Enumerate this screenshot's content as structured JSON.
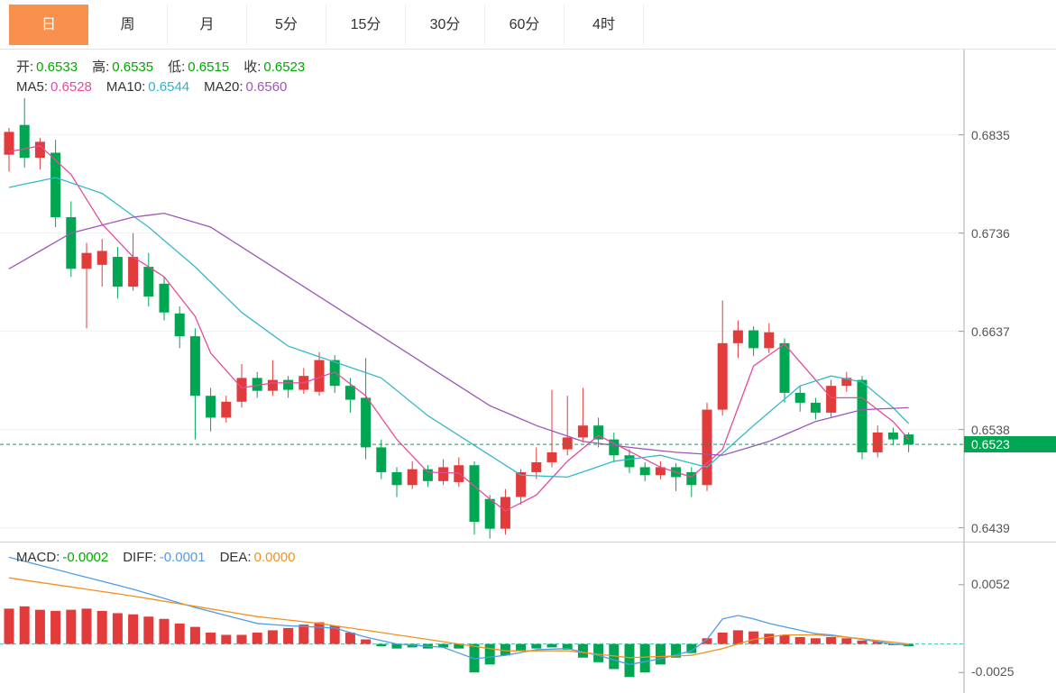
{
  "tabs": {
    "active_index": 0,
    "items": [
      {
        "label": "日"
      },
      {
        "label": "周"
      },
      {
        "label": "月"
      },
      {
        "label": "5分"
      },
      {
        "label": "15分"
      },
      {
        "label": "30分"
      },
      {
        "label": "60分"
      },
      {
        "label": "4时"
      }
    ]
  },
  "ohlc_legend": {
    "open_label": "开:",
    "open": "0.6533",
    "high_label": "高:",
    "high": "0.6535",
    "low_label": "低:",
    "low": "0.6515",
    "close_label": "收:",
    "close": "0.6523"
  },
  "ma_legend": {
    "ma5_label": "MA5:",
    "ma5": "0.6528",
    "ma10_label": "MA10:",
    "ma10": "0.6544",
    "ma20_label": "MA20:",
    "ma20": "0.6560"
  },
  "macd_legend": {
    "macd_label": "MACD:",
    "macd": "-0.0002",
    "diff_label": "DIFF:",
    "diff": "-0.0001",
    "dea_label": "DEA:",
    "dea": "0.0000"
  },
  "price_marker": {
    "value": "0.6523",
    "price": 0.6523
  },
  "colors": {
    "accent": "#f7914d",
    "up": "#e23b3b",
    "down": "#00a651",
    "ma5": "#e84a9a",
    "ma10": "#36b8cd",
    "ma20": "#9e56b8",
    "diff": "#4f9ce8",
    "dea": "#f0921f",
    "zero_line": "#35c3b8",
    "legend_green": "#00a800",
    "axis_text": "#555"
  },
  "chart_data": {
    "type": "candlestick",
    "title": "Daily candlestick chart with MA5/MA10/MA20 and MACD sub-panel",
    "legend_position": "top-left",
    "grid": true,
    "y_axis": {
      "labels": [
        0.6835,
        0.6736,
        0.6637,
        0.6538,
        0.6439
      ],
      "max": 0.6921,
      "min": 0.6425
    },
    "current_price": 0.6523,
    "candles": [
      [
        0.6815,
        0.6842,
        0.6798,
        0.6838
      ],
      [
        0.6845,
        0.6872,
        0.6802,
        0.6812
      ],
      [
        0.6812,
        0.6832,
        0.68,
        0.6828
      ],
      [
        0.6817,
        0.683,
        0.6742,
        0.6752
      ],
      [
        0.6752,
        0.6768,
        0.6692,
        0.67
      ],
      [
        0.67,
        0.6726,
        0.664,
        0.6716
      ],
      [
        0.6704,
        0.673,
        0.6682,
        0.6718
      ],
      [
        0.6712,
        0.6722,
        0.667,
        0.6682
      ],
      [
        0.6682,
        0.6736,
        0.6678,
        0.6712
      ],
      [
        0.6702,
        0.6716,
        0.6662,
        0.6672
      ],
      [
        0.6685,
        0.6692,
        0.6648,
        0.6656
      ],
      [
        0.6655,
        0.6662,
        0.662,
        0.6632
      ],
      [
        0.6632,
        0.664,
        0.6528,
        0.6572
      ],
      [
        0.6572,
        0.658,
        0.6536,
        0.655
      ],
      [
        0.655,
        0.6572,
        0.6545,
        0.6566
      ],
      [
        0.6566,
        0.6604,
        0.656,
        0.659
      ],
      [
        0.659,
        0.6596,
        0.657,
        0.6577
      ],
      [
        0.6577,
        0.6608,
        0.6572,
        0.6588
      ],
      [
        0.6588,
        0.6592,
        0.657,
        0.6578
      ],
      [
        0.6578,
        0.66,
        0.6574,
        0.6592
      ],
      [
        0.6576,
        0.6616,
        0.6572,
        0.6608
      ],
      [
        0.6608,
        0.6613,
        0.6575,
        0.6582
      ],
      [
        0.6582,
        0.659,
        0.6555,
        0.6568
      ],
      [
        0.657,
        0.661,
        0.6508,
        0.652
      ],
      [
        0.652,
        0.6528,
        0.6488,
        0.6495
      ],
      [
        0.6495,
        0.65,
        0.647,
        0.6482
      ],
      [
        0.6482,
        0.6506,
        0.6478,
        0.6498
      ],
      [
        0.6498,
        0.6502,
        0.648,
        0.6486
      ],
      [
        0.6486,
        0.6508,
        0.6482,
        0.65
      ],
      [
        0.6485,
        0.651,
        0.648,
        0.6502
      ],
      [
        0.6502,
        0.6506,
        0.6432,
        0.6445
      ],
      [
        0.6468,
        0.6472,
        0.6428,
        0.6438
      ],
      [
        0.6438,
        0.6478,
        0.6432,
        0.647
      ],
      [
        0.647,
        0.6498,
        0.6462,
        0.6495
      ],
      [
        0.6495,
        0.652,
        0.6488,
        0.6505
      ],
      [
        0.6505,
        0.6578,
        0.65,
        0.6515
      ],
      [
        0.6518,
        0.6572,
        0.6512,
        0.653
      ],
      [
        0.653,
        0.658,
        0.6525,
        0.6542
      ],
      [
        0.6542,
        0.655,
        0.652,
        0.6528
      ],
      [
        0.6528,
        0.6535,
        0.6505,
        0.6512
      ],
      [
        0.6512,
        0.6518,
        0.6494,
        0.65
      ],
      [
        0.65,
        0.6505,
        0.6486,
        0.6492
      ],
      [
        0.6492,
        0.6506,
        0.6488,
        0.65
      ],
      [
        0.65,
        0.6504,
        0.6476,
        0.649
      ],
      [
        0.6495,
        0.65,
        0.647,
        0.6482
      ],
      [
        0.6482,
        0.6565,
        0.6476,
        0.6558
      ],
      [
        0.6558,
        0.6668,
        0.6552,
        0.6625
      ],
      [
        0.6625,
        0.6648,
        0.661,
        0.6638
      ],
      [
        0.6638,
        0.6642,
        0.6612,
        0.662
      ],
      [
        0.662,
        0.6645,
        0.6615,
        0.6636
      ],
      [
        0.6625,
        0.663,
        0.6565,
        0.6575
      ],
      [
        0.6575,
        0.6582,
        0.6556,
        0.6565
      ],
      [
        0.6565,
        0.657,
        0.6548,
        0.6555
      ],
      [
        0.6555,
        0.6588,
        0.655,
        0.6582
      ],
      [
        0.6582,
        0.6596,
        0.6576,
        0.659
      ],
      [
        0.6588,
        0.6592,
        0.6508,
        0.6515
      ],
      [
        0.6515,
        0.6542,
        0.651,
        0.6535
      ],
      [
        0.6535,
        0.654,
        0.6522,
        0.6528
      ],
      [
        0.6533,
        0.6535,
        0.6515,
        0.6523
      ]
    ],
    "ma5_points": [
      [
        0,
        0.6818
      ],
      [
        2,
        0.6824
      ],
      [
        4,
        0.6795
      ],
      [
        6,
        0.6745
      ],
      [
        8,
        0.6712
      ],
      [
        10,
        0.6692
      ],
      [
        12,
        0.6652
      ],
      [
        13,
        0.6615
      ],
      [
        15,
        0.658
      ],
      [
        17,
        0.6585
      ],
      [
        19,
        0.6585
      ],
      [
        21,
        0.6596
      ],
      [
        23,
        0.6572
      ],
      [
        25,
        0.6528
      ],
      [
        27,
        0.6495
      ],
      [
        29,
        0.6494
      ],
      [
        31,
        0.6468
      ],
      [
        32,
        0.6456
      ],
      [
        34,
        0.6472
      ],
      [
        36,
        0.6506
      ],
      [
        38,
        0.6532
      ],
      [
        40,
        0.6516
      ],
      [
        42,
        0.65
      ],
      [
        44,
        0.649
      ],
      [
        46,
        0.6518
      ],
      [
        48,
        0.6602
      ],
      [
        50,
        0.6624
      ],
      [
        51,
        0.6606
      ],
      [
        53,
        0.657
      ],
      [
        55,
        0.657
      ],
      [
        57,
        0.6546
      ],
      [
        58,
        0.6528
      ]
    ],
    "ma10_points": [
      [
        0,
        0.6782
      ],
      [
        3,
        0.6792
      ],
      [
        6,
        0.6776
      ],
      [
        9,
        0.6742
      ],
      [
        12,
        0.6702
      ],
      [
        15,
        0.6656
      ],
      [
        18,
        0.6622
      ],
      [
        21,
        0.6606
      ],
      [
        24,
        0.659
      ],
      [
        27,
        0.6552
      ],
      [
        30,
        0.6522
      ],
      [
        33,
        0.6492
      ],
      [
        36,
        0.649
      ],
      [
        39,
        0.6506
      ],
      [
        42,
        0.6512
      ],
      [
        45,
        0.65
      ],
      [
        48,
        0.6542
      ],
      [
        51,
        0.6582
      ],
      [
        53,
        0.6592
      ],
      [
        55,
        0.6586
      ],
      [
        57,
        0.656
      ],
      [
        58,
        0.6544
      ]
    ],
    "ma20_points": [
      [
        0,
        0.67
      ],
      [
        4,
        0.6736
      ],
      [
        8,
        0.6752
      ],
      [
        10,
        0.6756
      ],
      [
        13,
        0.6742
      ],
      [
        16,
        0.6712
      ],
      [
        19,
        0.6682
      ],
      [
        22,
        0.6652
      ],
      [
        25,
        0.6622
      ],
      [
        28,
        0.6592
      ],
      [
        31,
        0.6562
      ],
      [
        34,
        0.6542
      ],
      [
        37,
        0.6526
      ],
      [
        40,
        0.652
      ],
      [
        43,
        0.6515
      ],
      [
        46,
        0.6512
      ],
      [
        49,
        0.6526
      ],
      [
        52,
        0.6546
      ],
      [
        55,
        0.6558
      ],
      [
        58,
        0.656
      ]
    ],
    "macd": {
      "y_axis": {
        "labels": [
          0.0052,
          -0.0025
        ],
        "max": 0.0089,
        "min": -0.0043
      },
      "histogram": [
        0.0031,
        0.0033,
        0.003,
        0.0029,
        0.003,
        0.0031,
        0.0029,
        0.0027,
        0.0026,
        0.0024,
        0.0022,
        0.0018,
        0.0015,
        0.001,
        0.0008,
        0.0008,
        0.001,
        0.0012,
        0.0014,
        0.0017,
        0.0019,
        0.0016,
        0.001,
        0.0004,
        -0.0002,
        -0.0004,
        -0.0003,
        -0.0004,
        -0.0003,
        -0.0004,
        -0.0025,
        -0.0018,
        -0.001,
        -0.0006,
        -0.0004,
        -0.0003,
        -0.0005,
        -0.0012,
        -0.0016,
        -0.0022,
        -0.0029,
        -0.0025,
        -0.0018,
        -0.0012,
        -0.0008,
        0.0005,
        0.001,
        0.0012,
        0.0011,
        0.0009,
        0.0008,
        0.0006,
        0.0005,
        0.0006,
        0.0005,
        0.0003,
        0.0002,
        -0.0001,
        -0.0002
      ],
      "diff_points": [
        [
          0,
          0.0076
        ],
        [
          4,
          0.0062
        ],
        [
          8,
          0.0048
        ],
        [
          12,
          0.0032
        ],
        [
          16,
          0.0018
        ],
        [
          18,
          0.0016
        ],
        [
          21,
          0.0014
        ],
        [
          23,
          0.0006
        ],
        [
          25,
          0.0
        ],
        [
          28,
          -0.0003
        ],
        [
          30,
          -0.0013
        ],
        [
          32,
          -0.001
        ],
        [
          34,
          -0.0005
        ],
        [
          36,
          -0.0004
        ],
        [
          38,
          -0.001
        ],
        [
          40,
          -0.0018
        ],
        [
          42,
          -0.0013
        ],
        [
          44,
          -0.0006
        ],
        [
          45,
          0.0004
        ],
        [
          46,
          0.0022
        ],
        [
          47,
          0.0025
        ],
        [
          48,
          0.0022
        ],
        [
          49,
          0.0018
        ],
        [
          50,
          0.0015
        ],
        [
          51,
          0.0012
        ],
        [
          52,
          0.0009
        ],
        [
          53,
          0.0008
        ],
        [
          54,
          0.0006
        ],
        [
          55,
          0.0004
        ],
        [
          56,
          0.0002
        ],
        [
          57,
          0.0
        ],
        [
          58,
          -0.0001
        ]
      ],
      "dea_points": [
        [
          0,
          0.0058
        ],
        [
          4,
          0.005
        ],
        [
          8,
          0.0042
        ],
        [
          12,
          0.0033
        ],
        [
          16,
          0.0024
        ],
        [
          20,
          0.0018
        ],
        [
          24,
          0.001
        ],
        [
          28,
          0.0002
        ],
        [
          32,
          -0.0006
        ],
        [
          36,
          -0.0006
        ],
        [
          40,
          -0.0012
        ],
        [
          44,
          -0.001
        ],
        [
          46,
          -0.0004
        ],
        [
          48,
          0.0004
        ],
        [
          50,
          0.0008
        ],
        [
          52,
          0.0008
        ],
        [
          54,
          0.0006
        ],
        [
          56,
          0.0003
        ],
        [
          58,
          0.0
        ]
      ]
    }
  }
}
